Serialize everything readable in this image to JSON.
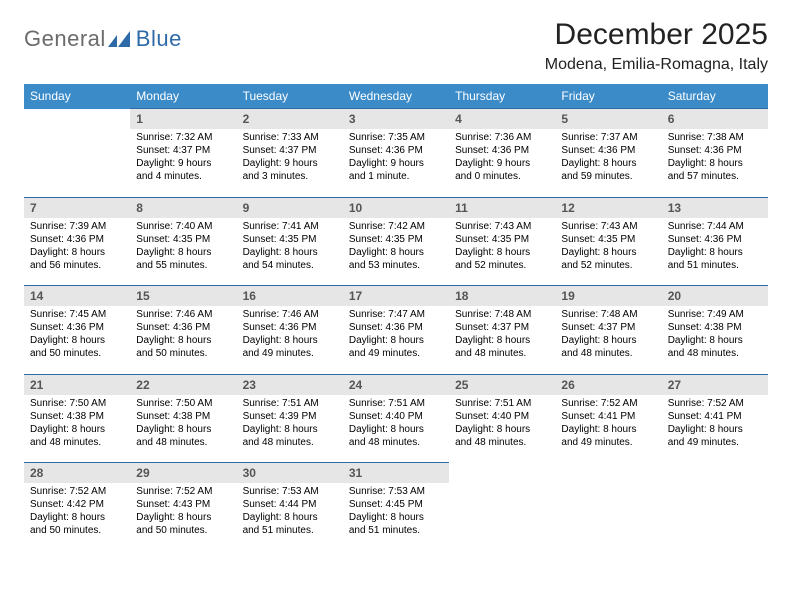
{
  "logo": {
    "text1": "General",
    "text2": "Blue",
    "color_general": "#6b6b6b",
    "color_blue": "#2f6aa8"
  },
  "title": "December 2025",
  "location": "Modena, Emilia-Romagna, Italy",
  "colors": {
    "header_bg": "#3b8bc9",
    "header_text": "#ffffff",
    "daynum_bg": "#e6e6e6",
    "daynum_text": "#555555",
    "border": "#2f6aa8",
    "body_text": "#000000",
    "page_bg": "#ffffff"
  },
  "weekdays": [
    "Sunday",
    "Monday",
    "Tuesday",
    "Wednesday",
    "Thursday",
    "Friday",
    "Saturday"
  ],
  "weeks": [
    [
      null,
      {
        "n": "1",
        "sunrise": "7:32 AM",
        "sunset": "4:37 PM",
        "daylight": "9 hours and 4 minutes."
      },
      {
        "n": "2",
        "sunrise": "7:33 AM",
        "sunset": "4:37 PM",
        "daylight": "9 hours and 3 minutes."
      },
      {
        "n": "3",
        "sunrise": "7:35 AM",
        "sunset": "4:36 PM",
        "daylight": "9 hours and 1 minute."
      },
      {
        "n": "4",
        "sunrise": "7:36 AM",
        "sunset": "4:36 PM",
        "daylight": "9 hours and 0 minutes."
      },
      {
        "n": "5",
        "sunrise": "7:37 AM",
        "sunset": "4:36 PM",
        "daylight": "8 hours and 59 minutes."
      },
      {
        "n": "6",
        "sunrise": "7:38 AM",
        "sunset": "4:36 PM",
        "daylight": "8 hours and 57 minutes."
      }
    ],
    [
      {
        "n": "7",
        "sunrise": "7:39 AM",
        "sunset": "4:36 PM",
        "daylight": "8 hours and 56 minutes."
      },
      {
        "n": "8",
        "sunrise": "7:40 AM",
        "sunset": "4:35 PM",
        "daylight": "8 hours and 55 minutes."
      },
      {
        "n": "9",
        "sunrise": "7:41 AM",
        "sunset": "4:35 PM",
        "daylight": "8 hours and 54 minutes."
      },
      {
        "n": "10",
        "sunrise": "7:42 AM",
        "sunset": "4:35 PM",
        "daylight": "8 hours and 53 minutes."
      },
      {
        "n": "11",
        "sunrise": "7:43 AM",
        "sunset": "4:35 PM",
        "daylight": "8 hours and 52 minutes."
      },
      {
        "n": "12",
        "sunrise": "7:43 AM",
        "sunset": "4:35 PM",
        "daylight": "8 hours and 52 minutes."
      },
      {
        "n": "13",
        "sunrise": "7:44 AM",
        "sunset": "4:36 PM",
        "daylight": "8 hours and 51 minutes."
      }
    ],
    [
      {
        "n": "14",
        "sunrise": "7:45 AM",
        "sunset": "4:36 PM",
        "daylight": "8 hours and 50 minutes."
      },
      {
        "n": "15",
        "sunrise": "7:46 AM",
        "sunset": "4:36 PM",
        "daylight": "8 hours and 50 minutes."
      },
      {
        "n": "16",
        "sunrise": "7:46 AM",
        "sunset": "4:36 PM",
        "daylight": "8 hours and 49 minutes."
      },
      {
        "n": "17",
        "sunrise": "7:47 AM",
        "sunset": "4:36 PM",
        "daylight": "8 hours and 49 minutes."
      },
      {
        "n": "18",
        "sunrise": "7:48 AM",
        "sunset": "4:37 PM",
        "daylight": "8 hours and 48 minutes."
      },
      {
        "n": "19",
        "sunrise": "7:48 AM",
        "sunset": "4:37 PM",
        "daylight": "8 hours and 48 minutes."
      },
      {
        "n": "20",
        "sunrise": "7:49 AM",
        "sunset": "4:38 PM",
        "daylight": "8 hours and 48 minutes."
      }
    ],
    [
      {
        "n": "21",
        "sunrise": "7:50 AM",
        "sunset": "4:38 PM",
        "daylight": "8 hours and 48 minutes."
      },
      {
        "n": "22",
        "sunrise": "7:50 AM",
        "sunset": "4:38 PM",
        "daylight": "8 hours and 48 minutes."
      },
      {
        "n": "23",
        "sunrise": "7:51 AM",
        "sunset": "4:39 PM",
        "daylight": "8 hours and 48 minutes."
      },
      {
        "n": "24",
        "sunrise": "7:51 AM",
        "sunset": "4:40 PM",
        "daylight": "8 hours and 48 minutes."
      },
      {
        "n": "25",
        "sunrise": "7:51 AM",
        "sunset": "4:40 PM",
        "daylight": "8 hours and 48 minutes."
      },
      {
        "n": "26",
        "sunrise": "7:52 AM",
        "sunset": "4:41 PM",
        "daylight": "8 hours and 49 minutes."
      },
      {
        "n": "27",
        "sunrise": "7:52 AM",
        "sunset": "4:41 PM",
        "daylight": "8 hours and 49 minutes."
      }
    ],
    [
      {
        "n": "28",
        "sunrise": "7:52 AM",
        "sunset": "4:42 PM",
        "daylight": "8 hours and 50 minutes."
      },
      {
        "n": "29",
        "sunrise": "7:52 AM",
        "sunset": "4:43 PM",
        "daylight": "8 hours and 50 minutes."
      },
      {
        "n": "30",
        "sunrise": "7:53 AM",
        "sunset": "4:44 PM",
        "daylight": "8 hours and 51 minutes."
      },
      {
        "n": "31",
        "sunrise": "7:53 AM",
        "sunset": "4:45 PM",
        "daylight": "8 hours and 51 minutes."
      },
      null,
      null,
      null
    ]
  ],
  "labels": {
    "sunrise": "Sunrise:",
    "sunset": "Sunset:",
    "daylight": "Daylight:"
  }
}
